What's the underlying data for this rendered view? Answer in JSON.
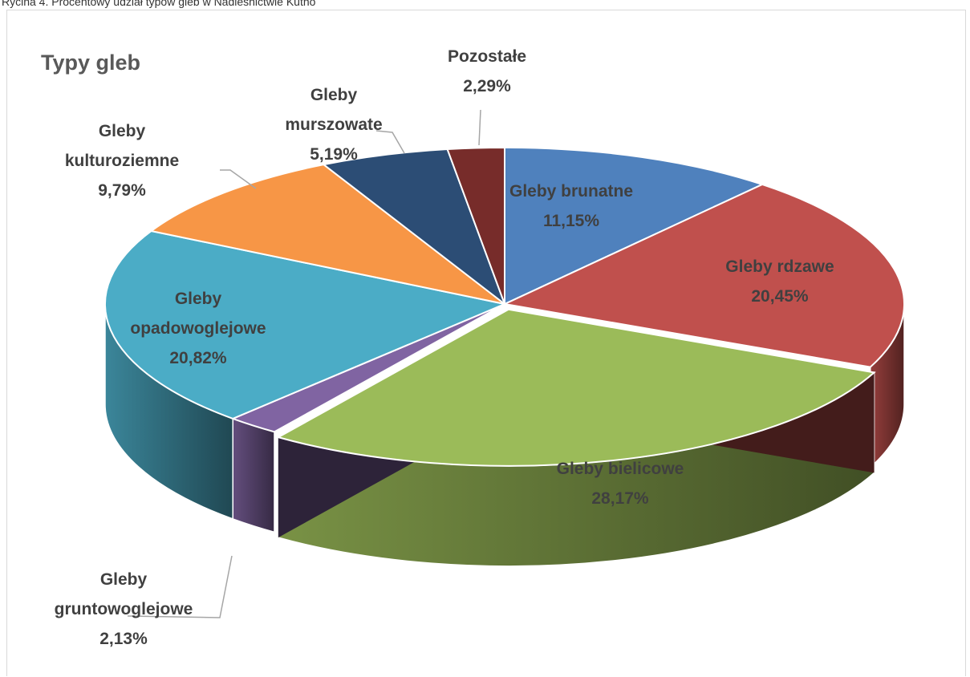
{
  "caption": "Rycina 4. Procentowy udział typów gleb w Nadleśnictwie Kutno",
  "chart_data": {
    "type": "pie",
    "title": "Typy gleb",
    "legend": "none",
    "slices": [
      {
        "name": "Gleby brunatne",
        "lines": [
          "Gleby brunatne"
        ],
        "value": 11.15,
        "label": "11,15%",
        "color": "#4f81bd"
      },
      {
        "name": "Gleby rdzawe",
        "lines": [
          "Gleby rdzawe"
        ],
        "value": 20.45,
        "label": "20,45%",
        "color": "#c0504d"
      },
      {
        "name": "Gleby bielicowe",
        "lines": [
          "Gleby bielicowe"
        ],
        "value": 28.17,
        "label": "28,17%",
        "color": "#9bbb59"
      },
      {
        "name": "Gleby gruntowoglejowe",
        "lines": [
          "Gleby",
          "gruntowoglejowe"
        ],
        "value": 2.13,
        "label": "2,13%",
        "color": "#8064a2"
      },
      {
        "name": "Gleby opadowoglejowe",
        "lines": [
          "Gleby",
          "opadowoglejowe"
        ],
        "value": 20.82,
        "label": "20,82%",
        "color": "#4bacc6"
      },
      {
        "name": "Gleby kulturoziemne",
        "lines": [
          "Gleby",
          "kulturoziemne"
        ],
        "value": 9.79,
        "label": "9,79%",
        "color": "#f79646"
      },
      {
        "name": "Gleby murszowate",
        "lines": [
          "Gleby",
          "murszowate"
        ],
        "value": 5.19,
        "label": "5,19%",
        "color": "#2c4d75"
      },
      {
        "name": "Pozostałe",
        "lines": [
          "Pozostałe"
        ],
        "value": 2.29,
        "label": "2,29%",
        "color": "#772c2a"
      }
    ]
  }
}
